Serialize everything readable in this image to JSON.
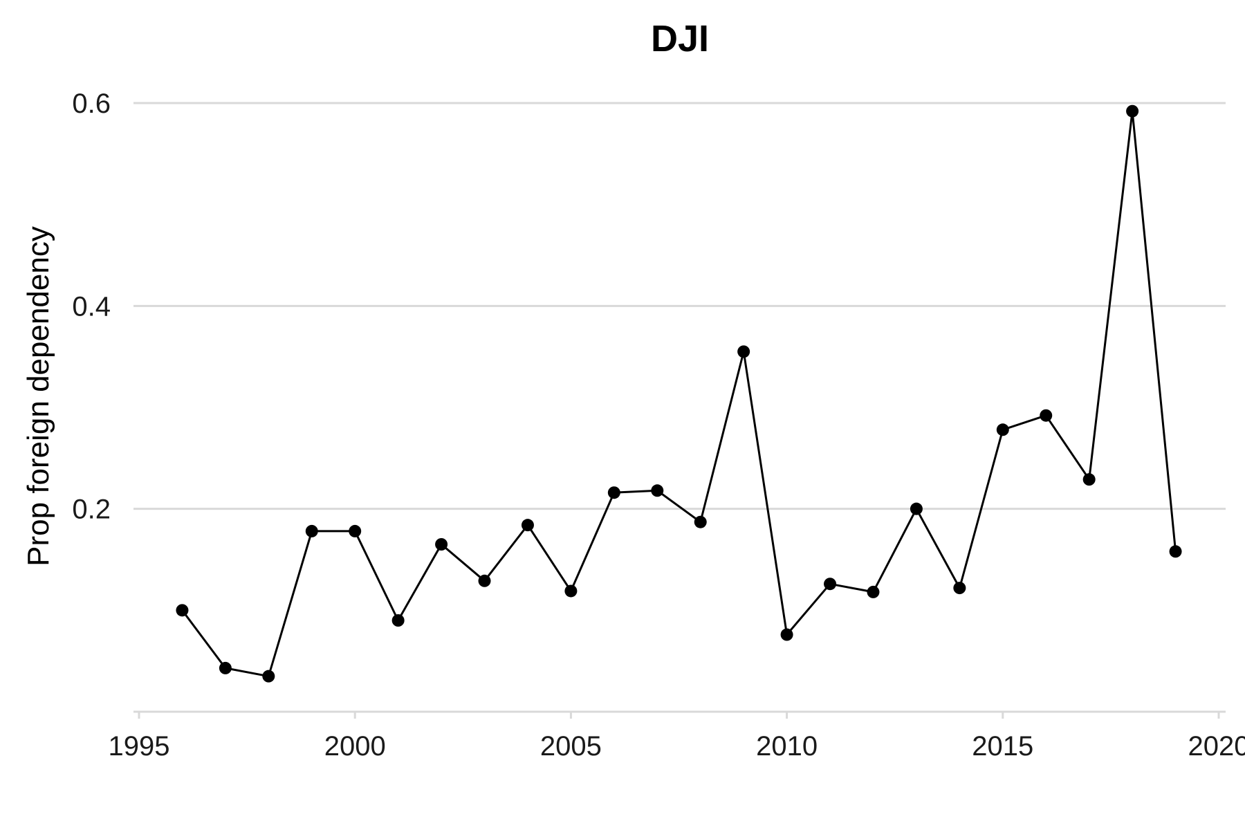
{
  "chart_data": {
    "type": "line",
    "title": "DJI",
    "xlabel": "",
    "ylabel": "Prop foreign dependency",
    "xlim": [
      1995,
      2020
    ],
    "ylim": [
      0.0,
      0.6
    ],
    "xticks": [
      1995,
      2000,
      2005,
      2010,
      2015,
      2020
    ],
    "xtick_labels": [
      "1995",
      "2000",
      "2005",
      "2010",
      "2015",
      "2020"
    ],
    "yticks": [
      0.2,
      0.4,
      0.6
    ],
    "ytick_labels": [
      "0.2",
      "0.4",
      "0.6"
    ],
    "grid": "horizontal",
    "legend": "none",
    "series": [
      {
        "x": [
          1996,
          1997,
          1998,
          1999,
          2000,
          2001,
          2002,
          2003,
          2004,
          2005,
          2006,
          2007,
          2008,
          2009,
          2010,
          2011,
          2012,
          2013,
          2014,
          2015,
          2016,
          2017,
          2018,
          2019
        ],
        "values": [
          0.1,
          0.043,
          0.035,
          0.178,
          0.178,
          0.09,
          0.165,
          0.129,
          0.184,
          0.119,
          0.216,
          0.218,
          0.187,
          0.355,
          0.076,
          0.126,
          0.118,
          0.2,
          0.122,
          0.278,
          0.292,
          0.229,
          0.592,
          0.158
        ]
      }
    ],
    "colors": {
      "line": "#000000",
      "grid": "#d9d9d9"
    }
  }
}
